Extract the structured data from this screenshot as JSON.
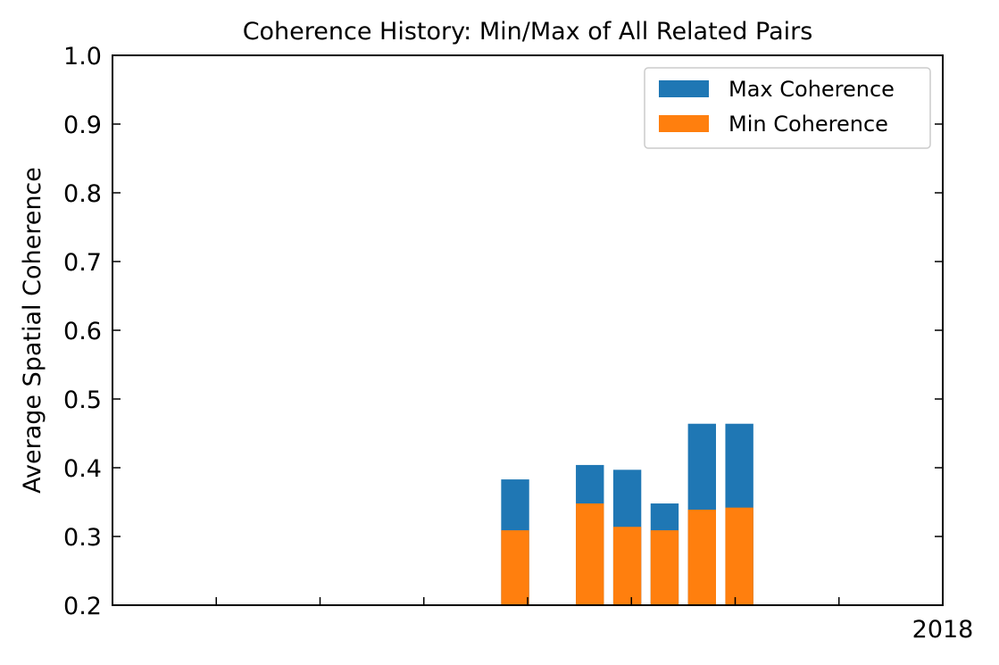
{
  "chart_data": {
    "type": "bar",
    "stacked_overlay": true,
    "title": "Coherence History: Min/Max of All Related Pairs",
    "xlabel": "",
    "ylabel": "Average Spatial Coherence",
    "ylim": [
      0.2,
      1.0
    ],
    "yticks": [
      "0.2",
      "0.3",
      "0.4",
      "0.5",
      "0.6",
      "0.7",
      "0.8",
      "0.9",
      "1.0"
    ],
    "xlim": [
      0,
      8
    ],
    "xticks": [
      1,
      2,
      3,
      4,
      5,
      6,
      7
    ],
    "xtick_labels": [
      {
        "x": 8,
        "label": "2018"
      }
    ],
    "bar_width": 0.27,
    "x": [
      3.88,
      4.6,
      4.96,
      5.32,
      5.68,
      6.04
    ],
    "series": [
      {
        "name": "Max Coherence",
        "color": "#1f77b4",
        "values": [
          0.383,
          0.404,
          0.397,
          0.348,
          0.464,
          0.464
        ]
      },
      {
        "name": "Min Coherence",
        "color": "#ff7f0e",
        "values": [
          0.309,
          0.348,
          0.314,
          0.309,
          0.339,
          0.342
        ]
      }
    ],
    "legend": "top-right",
    "grid": false
  }
}
